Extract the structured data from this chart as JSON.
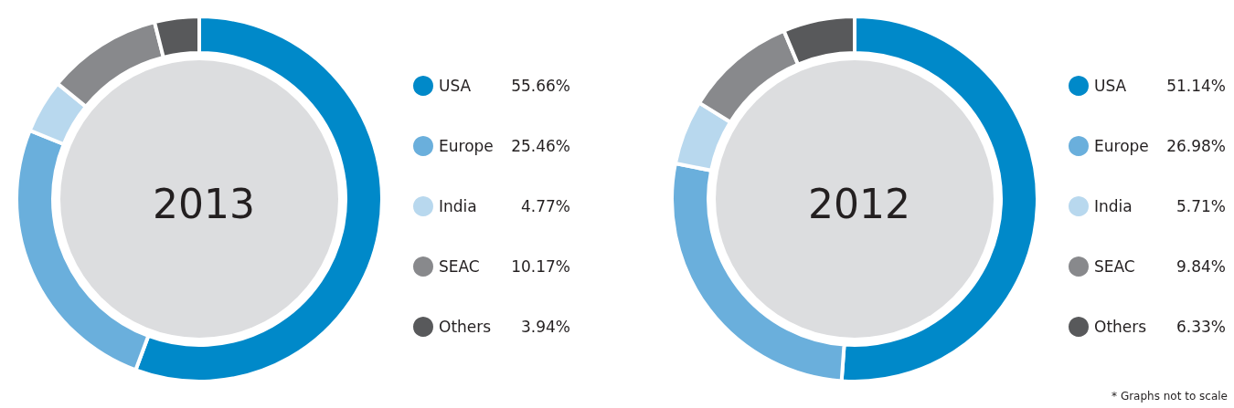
{
  "chart_data": [
    {
      "type": "donut",
      "title": "2013",
      "categories": [
        "USA",
        "Europe",
        "India",
        "SEAC",
        "Others"
      ],
      "values": [
        55.66,
        25.46,
        4.77,
        10.17,
        3.94
      ],
      "value_labels": [
        "55.66%",
        "25.46%",
        "4.77%",
        "10.17%",
        "3.94%"
      ],
      "colors": [
        "#0089c9",
        "#6aafdc",
        "#b8d8ee",
        "#88898c",
        "#58595b"
      ],
      "legend": "right"
    },
    {
      "type": "donut",
      "title": "2012",
      "categories": [
        "USA",
        "Europe",
        "India",
        "SEAC",
        "Others"
      ],
      "values": [
        51.14,
        26.98,
        5.71,
        9.84,
        6.33
      ],
      "value_labels": [
        "51.14%",
        "26.98%",
        "5.71%",
        "9.84%",
        "6.33%"
      ],
      "colors": [
        "#0089c9",
        "#6aafdc",
        "#b8d8ee",
        "#88898c",
        "#58595b"
      ],
      "legend": "right",
      "annotations": [
        "* Graphs not to scale"
      ]
    }
  ]
}
